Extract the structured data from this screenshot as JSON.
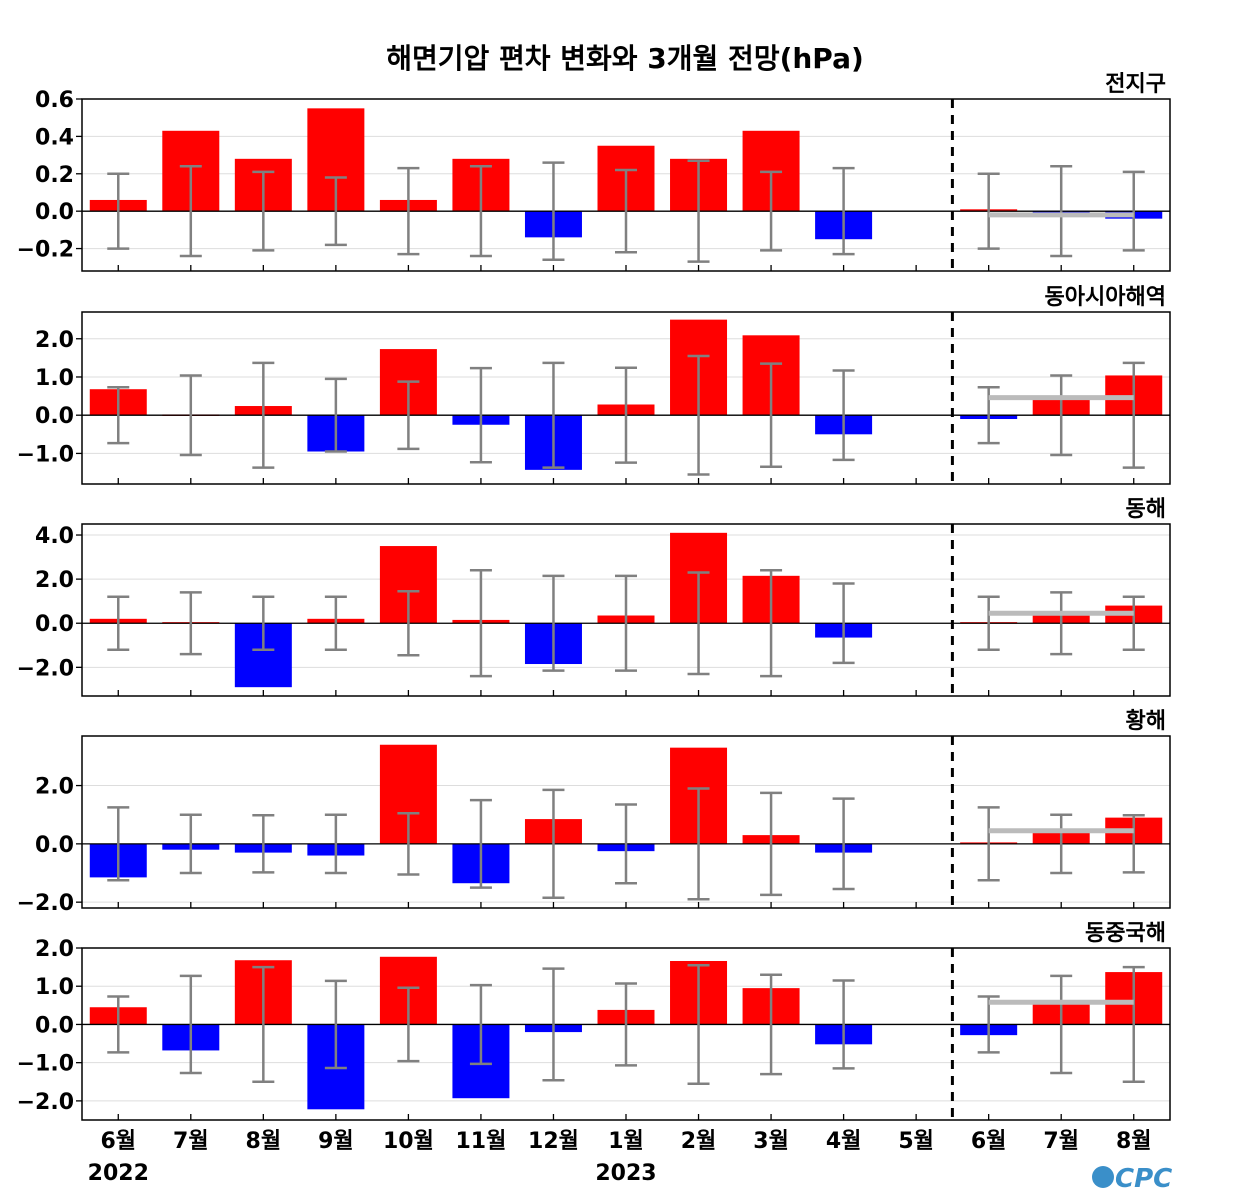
{
  "title": "해면기압 편차 변화와 3개월 전망(hPa)",
  "logo_text": "CPC",
  "colors": {
    "positive": "#ff0000",
    "negative": "#0000ff",
    "errorbar": "#808080",
    "forecast_line": "#bbbbbb",
    "divider": "#000000"
  },
  "chart_data": [
    {
      "type": "bar",
      "region": "전지구",
      "categories": [
        "6월",
        "7월",
        "8월",
        "9월",
        "10월",
        "11월",
        "12월",
        "1월",
        "2월",
        "3월",
        "4월",
        "5월",
        "6월",
        "7월",
        "8월"
      ],
      "year_labels": [
        {
          "index": 0,
          "label": "2022"
        },
        {
          "index": 7,
          "label": "2023"
        }
      ],
      "values": [
        0.06,
        0.43,
        0.28,
        0.55,
        0.06,
        0.28,
        -0.14,
        0.35,
        0.28,
        0.43,
        -0.15,
        0.0,
        0.01,
        -0.01,
        -0.04
      ],
      "error": [
        0.2,
        0.24,
        0.21,
        0.18,
        0.23,
        0.24,
        0.26,
        0.22,
        0.27,
        0.21,
        0.23,
        0.0,
        0.2,
        0.24,
        0.21
      ],
      "forecast_level": -0.02,
      "ylim": [
        -0.32,
        0.6
      ],
      "yticks": [
        -0.2,
        0.0,
        0.2,
        0.4,
        0.6
      ],
      "ytick_labels": [
        "−0.2",
        "0.0",
        "0.2",
        "0.4",
        "0.6"
      ],
      "forecast_divider_after_index": 11
    },
    {
      "type": "bar",
      "region": "동아시아해역",
      "categories": [
        "6월",
        "7월",
        "8월",
        "9월",
        "10월",
        "11월",
        "12월",
        "1월",
        "2월",
        "3월",
        "4월",
        "5월",
        "6월",
        "7월",
        "8월"
      ],
      "values": [
        0.68,
        0.02,
        0.24,
        -0.95,
        1.73,
        -0.25,
        -1.43,
        0.28,
        2.5,
        2.09,
        -0.5,
        0.0,
        -0.1,
        0.42,
        1.04
      ],
      "error": [
        0.73,
        1.04,
        1.37,
        0.95,
        0.88,
        1.23,
        1.37,
        1.24,
        1.55,
        1.35,
        1.17,
        0.0,
        0.73,
        1.04,
        1.37
      ],
      "forecast_level": 0.46,
      "ylim": [
        -1.8,
        2.7
      ],
      "yticks": [
        -1.0,
        0.0,
        1.0,
        2.0
      ],
      "ytick_labels": [
        "−1.0",
        "0.0",
        "1.0",
        "2.0"
      ],
      "forecast_divider_after_index": 11
    },
    {
      "type": "bar",
      "region": "동해",
      "categories": [
        "6월",
        "7월",
        "8월",
        "9월",
        "10월",
        "11월",
        "12월",
        "1월",
        "2월",
        "3월",
        "4월",
        "5월",
        "6월",
        "7월",
        "8월"
      ],
      "values": [
        0.2,
        0.05,
        -2.9,
        0.2,
        3.5,
        0.15,
        -1.85,
        0.35,
        4.1,
        2.15,
        -0.65,
        0.0,
        0.05,
        0.45,
        0.8
      ],
      "error": [
        1.2,
        1.4,
        1.2,
        1.2,
        1.45,
        2.4,
        2.15,
        2.15,
        2.3,
        2.4,
        1.8,
        0.0,
        1.2,
        1.4,
        1.2
      ],
      "forecast_level": 0.45,
      "ylim": [
        -3.3,
        4.5
      ],
      "yticks": [
        -2.0,
        0.0,
        2.0,
        4.0
      ],
      "ytick_labels": [
        "−2.0",
        "0.0",
        "2.0",
        "4.0"
      ],
      "forecast_divider_after_index": 11
    },
    {
      "type": "bar",
      "region": "황해",
      "categories": [
        "6월",
        "7월",
        "8월",
        "9월",
        "10월",
        "11월",
        "12월",
        "1월",
        "2월",
        "3월",
        "4월",
        "5월",
        "6월",
        "7월",
        "8월"
      ],
      "values": [
        -1.15,
        -0.2,
        -0.3,
        -0.4,
        3.4,
        -1.35,
        0.85,
        -0.25,
        3.3,
        0.3,
        -0.3,
        0.0,
        0.05,
        0.45,
        0.9
      ],
      "error": [
        1.25,
        1.0,
        0.98,
        1.0,
        1.05,
        1.5,
        1.85,
        1.35,
        1.9,
        1.75,
        1.55,
        0.0,
        1.25,
        1.0,
        0.98
      ],
      "forecast_level": 0.45,
      "ylim": [
        -2.2,
        3.7
      ],
      "yticks": [
        -2.0,
        0.0,
        2.0
      ],
      "ytick_labels": [
        "−2.0",
        "0.0",
        "2.0"
      ],
      "forecast_divider_after_index": 11
    },
    {
      "type": "bar",
      "region": "동중국해",
      "categories": [
        "6월",
        "7월",
        "8월",
        "9월",
        "10월",
        "11월",
        "12월",
        "1월",
        "2월",
        "3월",
        "4월",
        "5월",
        "6월",
        "7월",
        "8월"
      ],
      "values": [
        0.45,
        -0.68,
        1.68,
        -2.22,
        1.77,
        -1.93,
        -0.2,
        0.38,
        1.66,
        0.95,
        -0.52,
        0.0,
        -0.28,
        0.57,
        1.37
      ],
      "error": [
        0.73,
        1.27,
        1.5,
        1.14,
        0.96,
        1.03,
        1.46,
        1.07,
        1.55,
        1.3,
        1.15,
        0.0,
        0.73,
        1.27,
        1.5
      ],
      "forecast_level": 0.58,
      "ylim": [
        -2.5,
        2.0
      ],
      "yticks": [
        -2.0,
        -1.0,
        0.0,
        1.0,
        2.0
      ],
      "ytick_labels": [
        "−2.0",
        "−1.0",
        "0.0",
        "1.0",
        "2.0"
      ],
      "forecast_divider_after_index": 11
    }
  ]
}
